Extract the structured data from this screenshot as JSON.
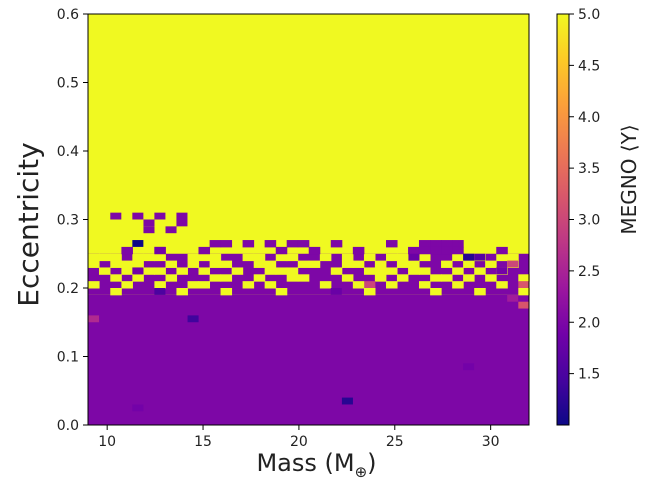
{
  "chart_data": {
    "type": "heatmap",
    "xlabel": "Mass (M",
    "xlabel_sub": "⊕",
    "xlabel_close": ")",
    "ylabel": "Eccentricity",
    "colorbar_label": "MEGNO ⟨Y⟩",
    "xlim": [
      9,
      32
    ],
    "ylim": [
      0,
      0.6
    ],
    "clim": [
      1,
      5
    ],
    "colormap": "plasma",
    "colormap_stops": [
      "#0d0887",
      "#46039f",
      "#7201a8",
      "#9c179e",
      "#bd3786",
      "#d8576b",
      "#ed7953",
      "#fb9f3a",
      "#fdca26",
      "#f0f921"
    ],
    "x_ticks": [
      10,
      15,
      20,
      25,
      30
    ],
    "x_tick_labels": [
      "10",
      "15",
      "20",
      "25",
      "30"
    ],
    "y_ticks": [
      0.0,
      0.1,
      0.2,
      0.3,
      0.4,
      0.5,
      0.6
    ],
    "y_tick_labels": [
      "0.0",
      "0.1",
      "0.2",
      "0.3",
      "0.4",
      "0.5",
      "0.6"
    ],
    "colorbar_ticks": [
      1.5,
      2.0,
      2.5,
      3.0,
      3.5,
      4.0,
      4.5,
      5.0
    ],
    "colorbar_tick_labels": [
      "1.5",
      "2.0",
      "2.5",
      "3.0",
      "3.5",
      "4.0",
      "4.5",
      "5.0"
    ],
    "grid": false,
    "chaotic_region": "Most cells above eccentricity ≈ 0.25 have MEGNO 5.0 (chaotic); below ≈ 0.19 the MEGNO is ≈ 2.0 (stable).",
    "cell_width": 0.575,
    "cell_height": 0.01,
    "background_value": 5.0,
    "low_region": {
      "y_max": 0.19,
      "value": 2.0
    },
    "mixed_rows": [
      {
        "y": 0.305,
        "high_x": [
          10.45,
          11.6,
          12.75,
          13.9
        ],
        "notes": ""
      },
      {
        "y": 0.295,
        "high_x": [
          12.18,
          13.9
        ],
        "notes": ""
      },
      {
        "y": 0.285,
        "high_x": [
          12.18,
          13.33
        ],
        "notes": ""
      },
      {
        "y": 0.275,
        "high_x": [],
        "notes": ""
      },
      {
        "y": 0.265,
        "high_x": [],
        "notes": ""
      },
      {
        "y": 0.255,
        "high_x": [],
        "notes": ""
      },
      {
        "y": 0.245,
        "high_x": [],
        "notes": ""
      },
      {
        "y": 0.235,
        "high_x": [],
        "notes": ""
      },
      {
        "y": 0.225,
        "high_x": [],
        "notes": ""
      },
      {
        "y": 0.215,
        "high_x": [],
        "notes": ""
      },
      {
        "y": 0.205,
        "high_x": [],
        "notes": ""
      },
      {
        "y": 0.195,
        "high_x": [],
        "notes": ""
      }
    ],
    "transition_cells_high": [
      [
        9.29,
        0.245
      ],
      [
        9.86,
        0.245
      ],
      [
        10.45,
        0.245
      ],
      [
        11.6,
        0.245
      ],
      [
        12.18,
        0.245
      ],
      [
        12.75,
        0.245
      ],
      [
        14.48,
        0.245
      ],
      [
        15.05,
        0.245
      ],
      [
        15.63,
        0.245
      ],
      [
        17.35,
        0.245
      ],
      [
        17.93,
        0.245
      ],
      [
        19.08,
        0.245
      ],
      [
        19.65,
        0.245
      ],
      [
        21.38,
        0.245
      ],
      [
        22.53,
        0.245
      ],
      [
        23.68,
        0.245
      ],
      [
        24.83,
        0.245
      ],
      [
        25.4,
        0.245
      ],
      [
        26.55,
        0.245
      ],
      [
        28.28,
        0.245
      ],
      [
        29.43,
        0.245
      ],
      [
        30.58,
        0.245
      ],
      [
        31.15,
        0.245
      ],
      [
        9.29,
        0.235
      ],
      [
        10.45,
        0.235
      ],
      [
        11.03,
        0.235
      ],
      [
        11.6,
        0.235
      ],
      [
        13.33,
        0.235
      ],
      [
        14.48,
        0.235
      ],
      [
        15.63,
        0.235
      ],
      [
        16.2,
        0.235
      ],
      [
        17.93,
        0.235
      ],
      [
        18.5,
        0.235
      ],
      [
        20.23,
        0.235
      ],
      [
        20.8,
        0.235
      ],
      [
        22.53,
        0.235
      ],
      [
        23.1,
        0.235
      ],
      [
        24.25,
        0.235
      ],
      [
        25.4,
        0.235
      ],
      [
        25.98,
        0.235
      ],
      [
        27.7,
        0.235
      ],
      [
        28.85,
        0.235
      ],
      [
        30.0,
        0.235
      ],
      [
        31.15,
        0.235
      ],
      [
        9.86,
        0.225
      ],
      [
        11.03,
        0.225
      ],
      [
        12.18,
        0.225
      ],
      [
        12.75,
        0.225
      ],
      [
        13.9,
        0.225
      ],
      [
        15.05,
        0.225
      ],
      [
        16.78,
        0.225
      ],
      [
        18.5,
        0.225
      ],
      [
        19.08,
        0.225
      ],
      [
        19.65,
        0.225
      ],
      [
        21.95,
        0.225
      ],
      [
        23.68,
        0.225
      ],
      [
        24.25,
        0.225
      ],
      [
        24.83,
        0.225
      ],
      [
        25.98,
        0.225
      ],
      [
        26.55,
        0.225
      ],
      [
        28.28,
        0.225
      ],
      [
        29.43,
        0.225
      ],
      [
        30.58,
        0.225
      ],
      [
        10.45,
        0.215
      ],
      [
        11.6,
        0.215
      ],
      [
        13.33,
        0.215
      ],
      [
        15.63,
        0.215
      ],
      [
        16.2,
        0.215
      ],
      [
        17.93,
        0.215
      ],
      [
        19.65,
        0.215
      ],
      [
        20.23,
        0.215
      ],
      [
        22.53,
        0.215
      ],
      [
        24.25,
        0.215
      ],
      [
        25.4,
        0.215
      ],
      [
        27.13,
        0.215
      ],
      [
        27.7,
        0.215
      ],
      [
        28.85,
        0.215
      ],
      [
        30.0,
        0.215
      ],
      [
        31.73,
        0.215
      ],
      [
        9.29,
        0.205
      ],
      [
        11.03,
        0.205
      ],
      [
        12.75,
        0.205
      ],
      [
        14.48,
        0.205
      ],
      [
        15.05,
        0.205
      ],
      [
        17.35,
        0.205
      ],
      [
        18.5,
        0.205
      ],
      [
        21.38,
        0.205
      ],
      [
        23.1,
        0.205
      ],
      [
        24.83,
        0.205
      ],
      [
        26.55,
        0.205
      ],
      [
        28.28,
        0.205
      ],
      [
        30.58,
        0.205
      ],
      [
        10.45,
        0.195
      ],
      [
        13.9,
        0.195
      ],
      [
        16.2,
        0.195
      ],
      [
        19.08,
        0.195
      ],
      [
        23.68,
        0.195
      ],
      [
        27.13,
        0.195
      ],
      [
        29.43,
        0.195
      ],
      [
        31.73,
        0.195
      ]
    ],
    "special_cells": [
      {
        "x": 11.6,
        "y": 0.265,
        "value": 1.0
      },
      {
        "x": 12.75,
        "y": 0.255,
        "value": 1.9
      },
      {
        "x": 11.6,
        "y": 0.225,
        "value": 1.9
      },
      {
        "x": 28.85,
        "y": 0.245,
        "value": 1.2
      },
      {
        "x": 26.0,
        "y": 0.245,
        "value": 1.8
      },
      {
        "x": 23.7,
        "y": 0.205,
        "value": 3.0
      },
      {
        "x": 31.73,
        "y": 0.205,
        "value": 3.2
      },
      {
        "x": 31.15,
        "y": 0.235,
        "value": 3.0
      },
      {
        "x": 31.15,
        "y": 0.185,
        "value": 2.4
      },
      {
        "x": 31.73,
        "y": 0.175,
        "value": 3.2
      },
      {
        "x": 14.48,
        "y": 0.155,
        "value": 1.4
      },
      {
        "x": 12.75,
        "y": 0.195,
        "value": 1.5
      },
      {
        "x": 21.95,
        "y": 0.195,
        "value": 1.8
      },
      {
        "x": 22.53,
        "y": 0.035,
        "value": 1.2
      },
      {
        "x": 9.29,
        "y": 0.155,
        "value": 2.6
      },
      {
        "x": 11.6,
        "y": 0.025,
        "value": 1.9
      },
      {
        "x": 28.85,
        "y": 0.085,
        "value": 1.9
      },
      {
        "x": 29.43,
        "y": 0.245,
        "value": 1.6
      },
      {
        "x": 30.58,
        "y": 0.225,
        "value": 1.9
      }
    ]
  }
}
